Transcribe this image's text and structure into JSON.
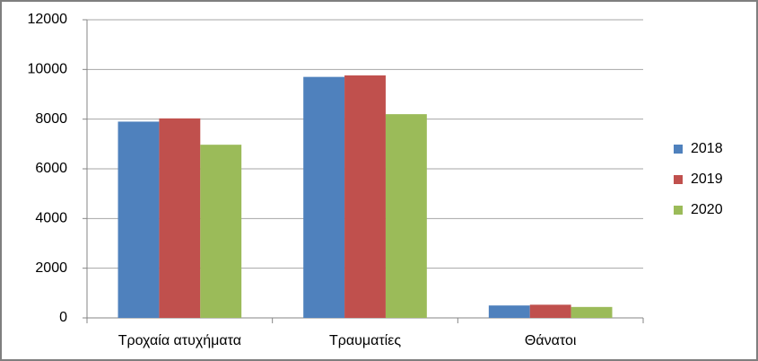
{
  "chart_data": {
    "type": "bar",
    "categories": [
      "Τροχαία ατυχήματα",
      "Τραυματίες",
      "Θάνατοι"
    ],
    "series": [
      {
        "name": "2018",
        "color": "#4f81bd",
        "values": [
          7900,
          9700,
          500
        ]
      },
      {
        "name": "2019",
        "color": "#c0504d",
        "values": [
          8030,
          9760,
          530
        ]
      },
      {
        "name": "2020",
        "color": "#9bbb59",
        "values": [
          6970,
          8200,
          440
        ]
      }
    ],
    "ylim": [
      0,
      12000
    ],
    "yticks": [
      0,
      2000,
      4000,
      6000,
      8000,
      10000,
      12000
    ],
    "grid": true,
    "legend": "right"
  }
}
